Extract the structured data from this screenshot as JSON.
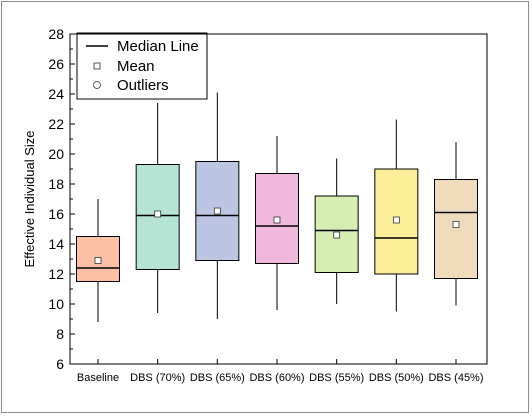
{
  "chart_data": {
    "type": "box",
    "title": "",
    "xlabel": "",
    "ylabel": "Effective Individual Size",
    "ylim": [
      6,
      28
    ],
    "yticks": [
      6,
      8,
      10,
      12,
      14,
      16,
      18,
      20,
      22,
      24,
      26,
      28
    ],
    "grid": false,
    "legend_position": "top-left",
    "legend": [
      {
        "label": "Median Line",
        "marker": "line"
      },
      {
        "label": "Mean",
        "marker": "square"
      },
      {
        "label": "Outliers",
        "marker": "circle"
      }
    ],
    "categories": [
      "Baseline",
      "DBS (70%)",
      "DBS (65%)",
      "DBS (60%)",
      "DBS (55%)",
      "DBS (50%)",
      "DBS (45%)"
    ],
    "boxes": [
      {
        "category": "Baseline",
        "whisker_low": 8.8,
        "q1": 11.5,
        "median": 12.4,
        "q3": 14.5,
        "whisker_high": 17.0,
        "mean": 12.9,
        "color": "#fbbfa5"
      },
      {
        "category": "DBS (70%)",
        "whisker_low": 9.4,
        "q1": 12.3,
        "median": 15.9,
        "q3": 19.3,
        "whisker_high": 23.4,
        "mean": 16.0,
        "color": "#b5e4d5"
      },
      {
        "category": "DBS (65%)",
        "whisker_low": 9.0,
        "q1": 12.9,
        "median": 15.9,
        "q3": 19.5,
        "whisker_high": 24.1,
        "mean": 16.2,
        "color": "#bcc6e3"
      },
      {
        "category": "DBS (60%)",
        "whisker_low": 9.6,
        "q1": 12.7,
        "median": 15.2,
        "q3": 18.7,
        "whisker_high": 21.2,
        "mean": 15.6,
        "color": "#f1b8de"
      },
      {
        "category": "DBS (55%)",
        "whisker_low": 10.0,
        "q1": 12.1,
        "median": 14.9,
        "q3": 17.2,
        "whisker_high": 19.7,
        "mean": 14.6,
        "color": "#d6eeb2"
      },
      {
        "category": "DBS (50%)",
        "whisker_low": 9.5,
        "q1": 12.0,
        "median": 14.4,
        "q3": 19.0,
        "whisker_high": 22.3,
        "mean": 15.6,
        "color": "#fdee9a"
      },
      {
        "category": "DBS (45%)",
        "whisker_low": 9.9,
        "q1": 11.7,
        "median": 16.1,
        "q3": 18.3,
        "whisker_high": 20.8,
        "mean": 15.3,
        "color": "#f0dcbc"
      }
    ]
  }
}
